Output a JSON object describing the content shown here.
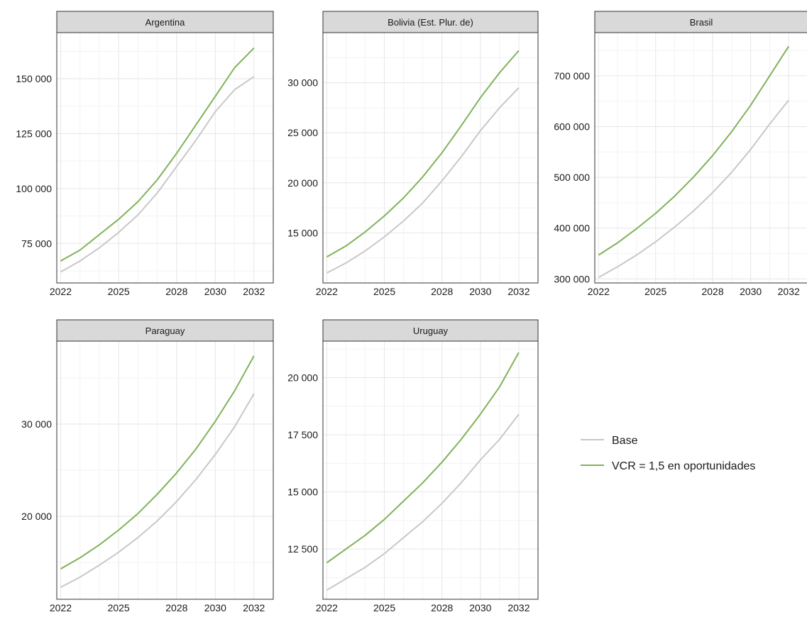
{
  "colors": {
    "Base": "#c8c8c8",
    "VCR = 1,5 en oportunidades": "#7fb35a"
  },
  "legend": [
    "Base",
    "VCR = 1,5 en oportunidades"
  ],
  "chart_data": [
    {
      "type": "line",
      "title": "Argentina",
      "x": [
        2022,
        2023,
        2024,
        2025,
        2026,
        2027,
        2028,
        2029,
        2030,
        2031,
        2032
      ],
      "xticks": [
        2022,
        2025,
        2028,
        2030,
        2032
      ],
      "xlim": [
        2021.8,
        2033
      ],
      "yticks": [
        75000,
        100000,
        125000,
        150000
      ],
      "ytick_labels": [
        "75 000",
        "100 000",
        "125 000",
        "150 000"
      ],
      "ylim": [
        57000,
        171000
      ],
      "series": [
        {
          "name": "Base",
          "values": [
            62000,
            67000,
            73000,
            80000,
            88000,
            98000,
            110000,
            122000,
            135000,
            145000,
            151000
          ]
        },
        {
          "name": "VCR = 1,5 en oportunidades",
          "values": [
            67000,
            72000,
            79000,
            86000,
            94000,
            104000,
            116000,
            129000,
            142000,
            155000,
            164000
          ]
        }
      ]
    },
    {
      "type": "line",
      "title": "Bolivia (Est. Plur. de)",
      "x": [
        2022,
        2023,
        2024,
        2025,
        2026,
        2027,
        2028,
        2029,
        2030,
        2031,
        2032
      ],
      "xticks": [
        2022,
        2025,
        2028,
        2030,
        2032
      ],
      "xlim": [
        2021.8,
        2033
      ],
      "yticks": [
        15000,
        20000,
        25000,
        30000
      ],
      "ytick_labels": [
        "15 000",
        "20 000",
        "25 000",
        "30 000"
      ],
      "ylim": [
        10000,
        35000
      ],
      "series": [
        {
          "name": "Base",
          "values": [
            11000,
            12000,
            13200,
            14600,
            16200,
            18000,
            20200,
            22600,
            25200,
            27500,
            29500
          ]
        },
        {
          "name": "VCR = 1,5 en oportunidades",
          "values": [
            12600,
            13700,
            15100,
            16700,
            18500,
            20600,
            23000,
            25700,
            28500,
            31000,
            33200
          ]
        }
      ]
    },
    {
      "type": "line",
      "title": "Brasil",
      "x": [
        2022,
        2023,
        2024,
        2025,
        2026,
        2027,
        2028,
        2029,
        2030,
        2031,
        2032
      ],
      "xticks": [
        2022,
        2025,
        2028,
        2030,
        2032
      ],
      "xlim": [
        2021.8,
        2033
      ],
      "yticks": [
        300000,
        400000,
        500000,
        600000,
        700000
      ],
      "ytick_labels": [
        "300 000",
        "400 000",
        "500 000",
        "600 000",
        "700 000"
      ],
      "ylim": [
        292000,
        785000
      ],
      "series": [
        {
          "name": "Base",
          "values": [
            303000,
            324000,
            347000,
            373000,
            402000,
            434000,
            470000,
            510000,
            555000,
            605000,
            652000
          ]
        },
        {
          "name": "VCR = 1,5 en oportunidades",
          "values": [
            347000,
            371000,
            399000,
            429000,
            463000,
            501000,
            543000,
            590000,
            642000,
            700000,
            758000
          ]
        }
      ]
    },
    {
      "type": "line",
      "title": "Paraguay",
      "x": [
        2022,
        2023,
        2024,
        2025,
        2026,
        2027,
        2028,
        2029,
        2030,
        2031,
        2032
      ],
      "xticks": [
        2022,
        2025,
        2028,
        2030,
        2032
      ],
      "xlim": [
        2021.8,
        2033
      ],
      "yticks": [
        20000,
        30000
      ],
      "ytick_labels": [
        "20 000",
        "30 000"
      ],
      "ylim": [
        11000,
        39000
      ],
      "series": [
        {
          "name": "Base",
          "values": [
            12300,
            13400,
            14700,
            16100,
            17700,
            19500,
            21600,
            24000,
            26700,
            29700,
            33300
          ]
        },
        {
          "name": "VCR = 1,5 en oportunidades",
          "values": [
            14300,
            15500,
            16900,
            18500,
            20300,
            22400,
            24700,
            27300,
            30300,
            33600,
            37400
          ]
        }
      ]
    },
    {
      "type": "line",
      "title": "Uruguay",
      "x": [
        2022,
        2023,
        2024,
        2025,
        2026,
        2027,
        2028,
        2029,
        2030,
        2031,
        2032
      ],
      "xticks": [
        2022,
        2025,
        2028,
        2030,
        2032
      ],
      "xlim": [
        2021.8,
        2033
      ],
      "yticks": [
        12500,
        15000,
        17500,
        20000
      ],
      "ytick_labels": [
        "12 500",
        "15 000",
        "17 500",
        "20 000"
      ],
      "ylim": [
        10300,
        21600
      ],
      "series": [
        {
          "name": "Base",
          "values": [
            10700,
            11200,
            11700,
            12300,
            13000,
            13700,
            14500,
            15400,
            16400,
            17300,
            18400
          ]
        },
        {
          "name": "VCR = 1,5 en oportunidades",
          "values": [
            11900,
            12500,
            13100,
            13800,
            14600,
            15400,
            16300,
            17300,
            18400,
            19600,
            21100
          ]
        }
      ]
    }
  ]
}
